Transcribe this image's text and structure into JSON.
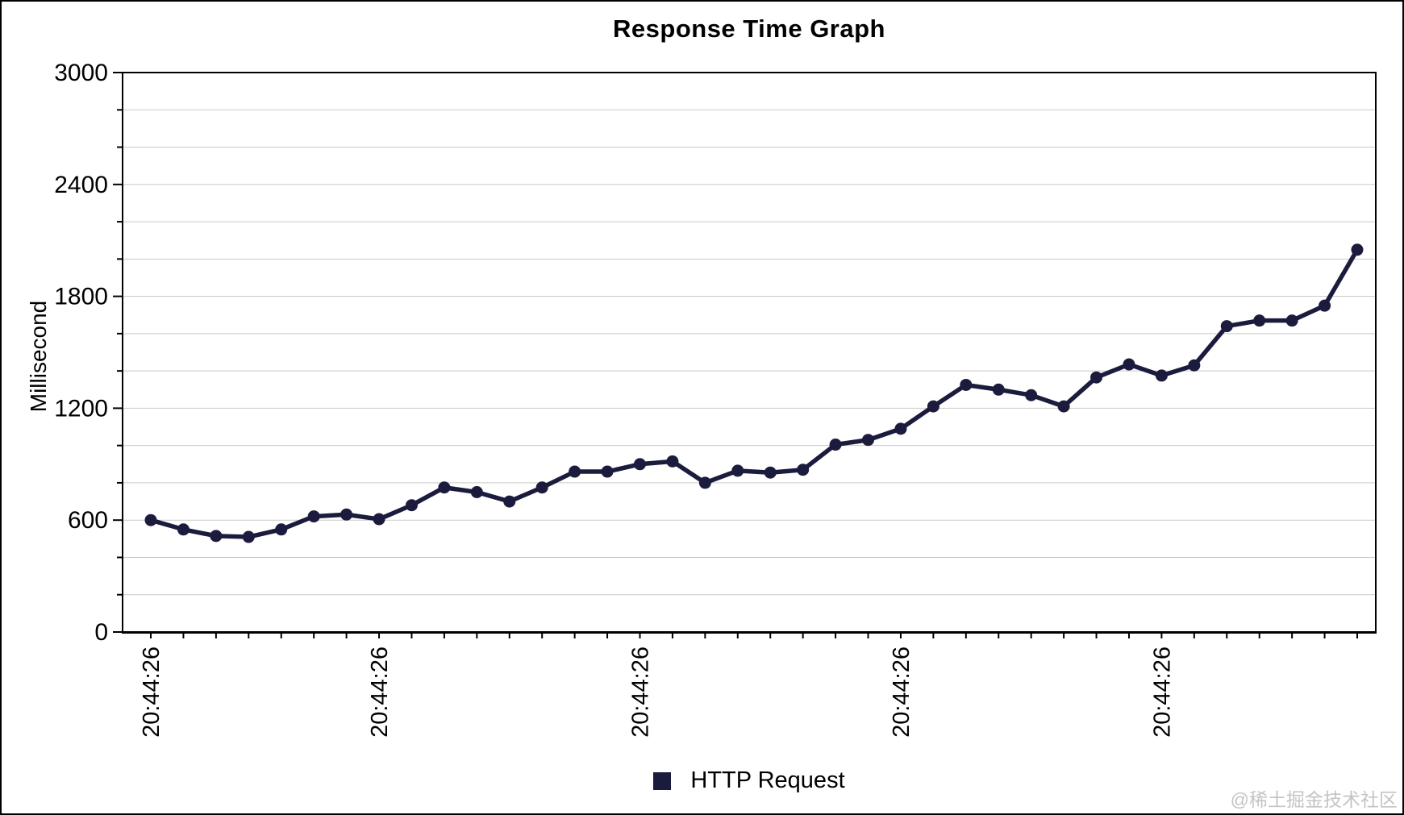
{
  "title": "Response Time Graph",
  "watermark": "@稀土掘金技术社区",
  "legend": {
    "label": "HTTP Request",
    "marker_color": "#1b1b3e"
  },
  "colors": {
    "line": "#1b1b3e",
    "grid": "#c9c9c9",
    "axis": "#000000",
    "background": "#ffffff",
    "watermark": "#c4c4c4"
  },
  "chart_data": {
    "type": "line",
    "title": "Response Time Graph",
    "xlabel": "",
    "ylabel": "Millisecond",
    "ylim": [
      0,
      3000
    ],
    "y_major_ticks": [
      0,
      600,
      1200,
      1800,
      2400,
      3000
    ],
    "y_minor_step": 200,
    "grid": "horizontal gridlines every 200 ms, light gray",
    "legend_position": "bottom-center",
    "x_tick_labels": [
      "20:44:26",
      "20:44:26",
      "20:44:26",
      "20:44:26",
      "20:44:26"
    ],
    "x_label_indices": [
      0,
      7,
      15,
      23,
      31
    ],
    "series": [
      {
        "name": "HTTP Request",
        "color": "#1b1b3e",
        "values": [
          600,
          550,
          515,
          510,
          550,
          620,
          630,
          605,
          680,
          775,
          750,
          700,
          775,
          860,
          860,
          900,
          915,
          800,
          865,
          855,
          870,
          1005,
          1030,
          1090,
          1210,
          1325,
          1300,
          1270,
          1210,
          1365,
          1435,
          1375,
          1430,
          1640,
          1670,
          1670,
          1750,
          2050
        ]
      }
    ]
  }
}
